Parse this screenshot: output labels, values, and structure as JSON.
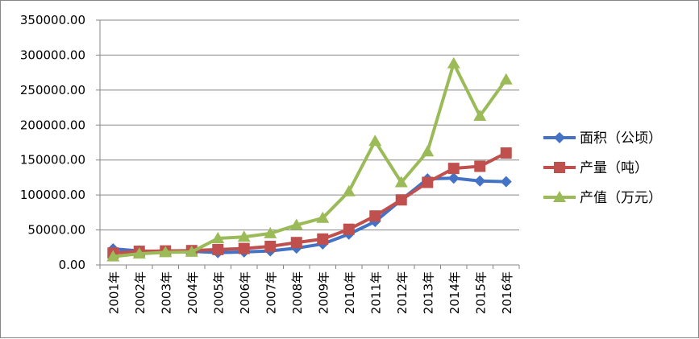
{
  "chart_data": {
    "type": "line",
    "title": "",
    "xlabel": "",
    "ylabel": "",
    "categories": [
      "2001年",
      "2002年",
      "2003年",
      "2004年",
      "2005年",
      "2006年",
      "2007年",
      "2008年",
      "2009年",
      "2010年",
      "2011年",
      "2012年",
      "2013年",
      "2014年",
      "2015年",
      "2016年"
    ],
    "y_ticks": [
      "0.00",
      "50000.00",
      "100000.00",
      "150000.00",
      "200000.00",
      "250000.00",
      "300000.00",
      "350000.00"
    ],
    "ylim": [
      0,
      350000
    ],
    "grid": true,
    "legend_position": "right",
    "series": [
      {
        "name": "面积（公顷）",
        "color": "#4472C4",
        "marker": "diamond",
        "values": [
          23000,
          20000,
          19000,
          19500,
          17500,
          18500,
          20000,
          24000,
          30000,
          44000,
          62000,
          93000,
          123000,
          124000,
          120000,
          119000
        ]
      },
      {
        "name": "产量（吨）",
        "color": "#C0504D",
        "marker": "square",
        "values": [
          17000,
          19500,
          20000,
          20500,
          22000,
          23500,
          26500,
          32000,
          37000,
          51000,
          70000,
          93000,
          118000,
          138000,
          141000,
          160000
        ]
      },
      {
        "name": "产值（万元）",
        "color": "#9BBB59",
        "marker": "triangle",
        "values": [
          12000,
          16000,
          18000,
          18500,
          38000,
          40000,
          45000,
          57000,
          67000,
          105000,
          177000,
          118000,
          162000,
          288000,
          213000,
          265000
        ]
      }
    ]
  }
}
